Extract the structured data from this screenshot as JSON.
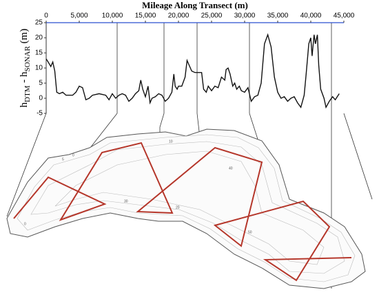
{
  "chart_data": {
    "type": "line",
    "title": "Mileage Along Transect (m)",
    "ylabel_parts": [
      "h",
      "DTM",
      " - h",
      "SONAR",
      " (m)"
    ],
    "xlim": [
      0,
      45000
    ],
    "xticks": [
      0,
      {
        "value": 5000,
        "label": "5,000"
      },
      {
        "value": 10000,
        "label": "10,000"
      },
      {
        "value": 15000,
        "label": "15,000"
      },
      {
        "value": 20000,
        "label": "20,000"
      },
      {
        "value": 25000,
        "label": "25,000"
      },
      {
        "value": 30000,
        "label": "30,000"
      },
      {
        "value": 35000,
        "label": "35,000"
      },
      {
        "value": 40000,
        "label": "40,000"
      },
      {
        "value": 45000,
        "label": "45,000"
      }
    ],
    "ylim": [
      -5,
      25
    ],
    "yticks": [
      -5,
      0,
      5,
      10,
      15,
      20,
      25
    ],
    "grid": false,
    "series": [
      {
        "color": "#111111",
        "x": [
          0,
          300,
          700,
          1000,
          1300,
          1600,
          2000,
          2500,
          3000,
          4000,
          4500,
          5000,
          5500,
          6000,
          6500,
          7000,
          8000,
          9000,
          9500,
          10000,
          10500,
          11000,
          11500,
          12000,
          12500,
          13000,
          13500,
          14000,
          14300,
          14600,
          15000,
          15400,
          15700,
          16000,
          16500,
          17000,
          17500,
          18000,
          18500,
          19000,
          19300,
          19500,
          19800,
          20000,
          20500,
          21000,
          21300,
          21600,
          22000,
          22500,
          23000,
          23500,
          23800,
          24200,
          24500,
          25000,
          25500,
          26000,
          26500,
          27000,
          27200,
          27500,
          27800,
          28200,
          28500,
          28800,
          29200,
          29500,
          30000,
          30500,
          31000,
          31500,
          32000,
          32500,
          33000,
          33500,
          34000,
          34500,
          35000,
          35500,
          36000,
          36500,
          37000,
          37500,
          38000,
          38500,
          39000,
          39300,
          39700,
          40000,
          40200,
          40500,
          40700,
          41000,
          41200,
          41500,
          42000,
          42300,
          42800,
          43300,
          43700,
          44000,
          44300
        ],
        "values": [
          13,
          12,
          10.5,
          12,
          9,
          2,
          1.5,
          2,
          1,
          1,
          2,
          4,
          3.5,
          -0.5,
          0,
          1,
          1.5,
          1,
          -0.5,
          1.5,
          0,
          1,
          1.5,
          1,
          -1,
          0,
          1.5,
          2.5,
          6,
          3,
          0.5,
          4,
          -1.5,
          0,
          0.5,
          1.5,
          1,
          -1,
          0,
          2,
          8,
          4,
          3,
          4,
          4,
          7,
          12.5,
          11,
          9,
          8.5,
          8.5,
          8.5,
          3,
          2,
          4,
          2.5,
          4,
          3.5,
          7,
          6,
          9.5,
          10,
          8,
          4,
          5,
          3,
          4,
          2.5,
          2,
          3.5,
          -1,
          0.5,
          1,
          5,
          18,
          21,
          17,
          7,
          2,
          0,
          0.5,
          -1,
          0,
          0.5,
          -1.5,
          -3,
          1,
          8,
          18,
          20,
          14,
          21,
          18,
          21,
          11,
          3,
          0,
          -3,
          -1,
          0.5,
          -0.5,
          0.5,
          1.5
        ]
      }
    ]
  },
  "map": {
    "contour_labels": [
      "0",
      "5",
      "10",
      "20",
      "30",
      "40",
      "50",
      "0"
    ]
  }
}
